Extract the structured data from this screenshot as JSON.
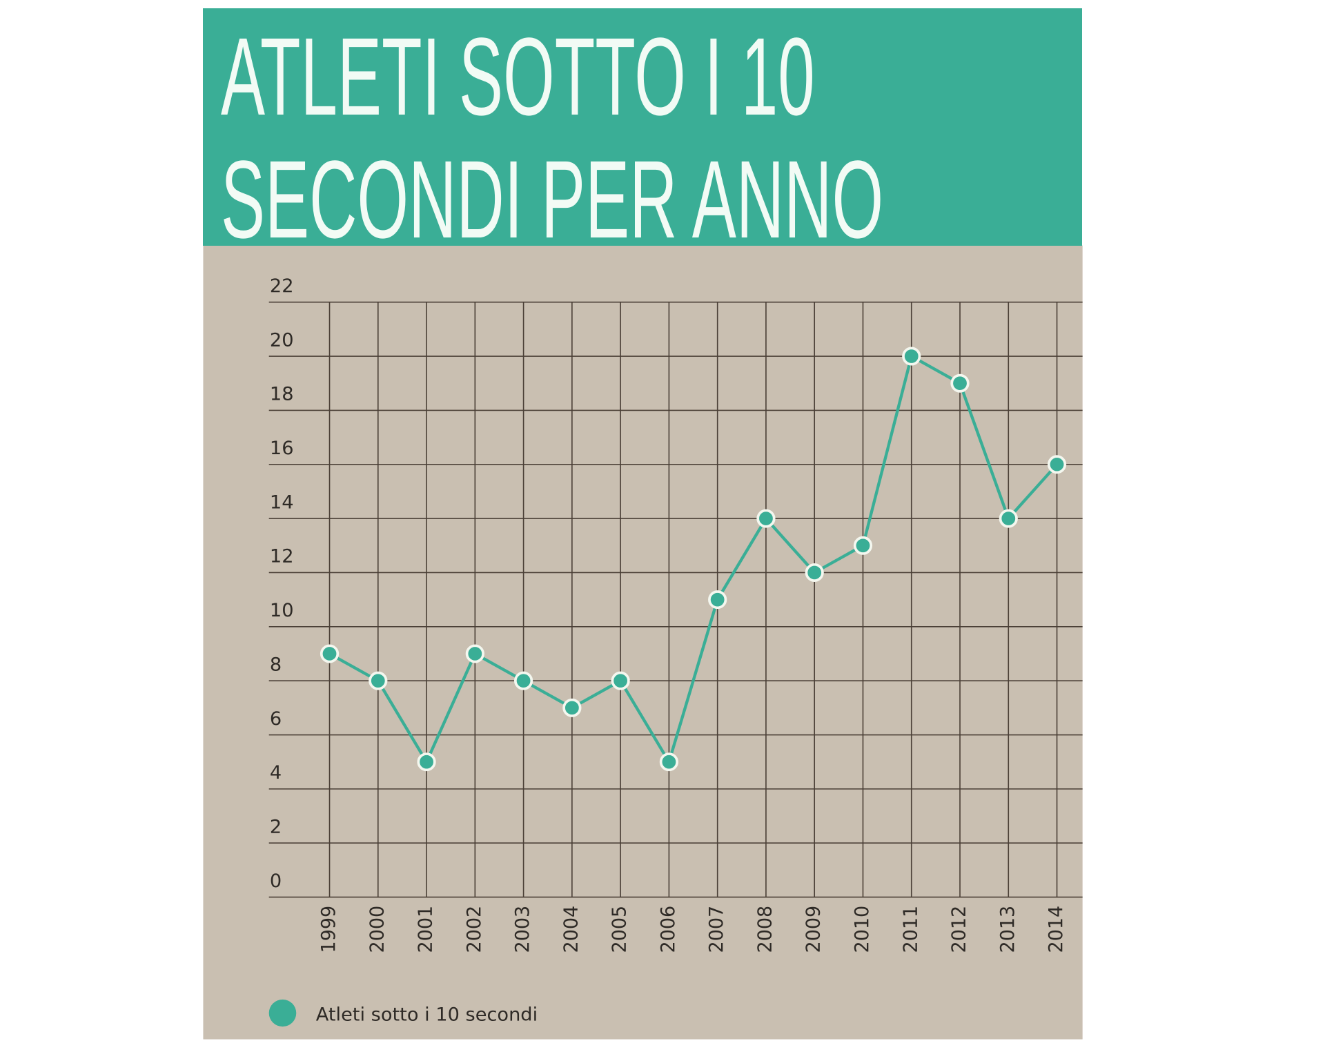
{
  "chart_data": {
    "type": "line",
    "title": "ATLETI SOTTO I 10 SECONDI PER ANNO",
    "categories": [
      "1999",
      "2000",
      "2001",
      "2002",
      "2003",
      "2004",
      "2005",
      "2006",
      "2007",
      "2008",
      "2009",
      "2010",
      "2011",
      "2012",
      "2013",
      "2014"
    ],
    "series": [
      {
        "name": "Atleti sotto i 10 secondi",
        "color": "#3aae96",
        "values": [
          9,
          8,
          5,
          9,
          8,
          7,
          8,
          5,
          11,
          14,
          12,
          13,
          20,
          19,
          14,
          16
        ]
      }
    ],
    "ylim": [
      0,
      22
    ],
    "yticks": [
      0,
      2,
      4,
      6,
      8,
      10,
      12,
      14,
      16,
      18,
      20,
      22
    ],
    "grid": true,
    "legend": "bottom-left"
  }
}
